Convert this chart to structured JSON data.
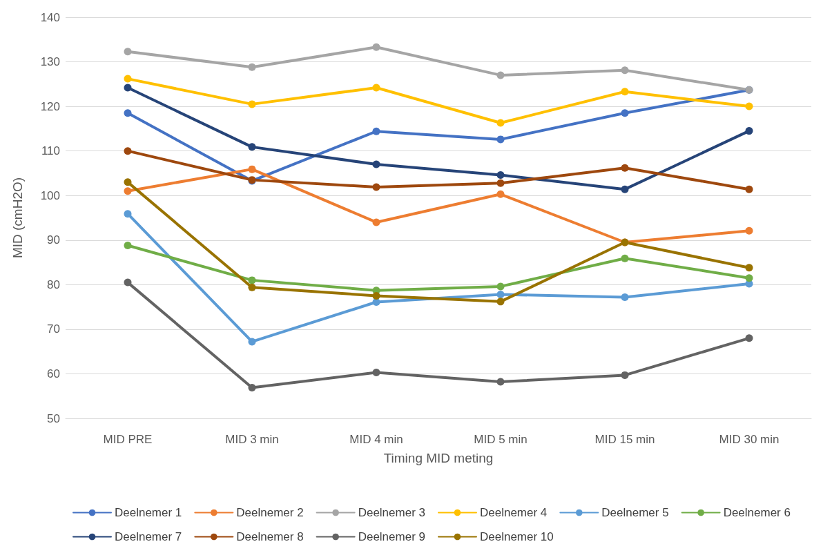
{
  "chart_data": {
    "type": "line",
    "xlabel": "Timing MID meting",
    "ylabel": "MID (cmH2O)",
    "categories": [
      "MID PRE",
      "MID 3 min",
      "MID 4 min",
      "MID 5 min",
      "MID 15 min",
      "MID 30 min"
    ],
    "ylim": [
      50,
      140
    ],
    "yticks": [
      50,
      60,
      70,
      80,
      90,
      100,
      110,
      120,
      130,
      140
    ],
    "grid": "y",
    "legend": "bottom",
    "marker": "circle",
    "line_style": "solid",
    "series": [
      {
        "name": "Deelnemer 1",
        "color": "#4472c4",
        "values": [
          118.5,
          103.3,
          114.4,
          112.6,
          118.5,
          123.7
        ]
      },
      {
        "name": "Deelnemer 2",
        "color": "#ed7d31",
        "values": [
          101.0,
          105.9,
          94.0,
          100.3,
          89.5,
          92.1
        ]
      },
      {
        "name": "Deelnemer 3",
        "color": "#a5a5a5",
        "values": [
          132.3,
          128.8,
          133.3,
          127.0,
          128.1,
          123.7
        ]
      },
      {
        "name": "Deelnemer 4",
        "color": "#ffc000",
        "values": [
          126.2,
          120.5,
          124.2,
          116.3,
          123.3,
          120.0
        ]
      },
      {
        "name": "Deelnemer 5",
        "color": "#5b9bd5",
        "values": [
          95.9,
          67.2,
          76.1,
          77.8,
          77.2,
          80.2
        ]
      },
      {
        "name": "Deelnemer 6",
        "color": "#70ad47",
        "values": [
          88.8,
          81.0,
          78.7,
          79.6,
          85.9,
          81.5
        ]
      },
      {
        "name": "Deelnemer 7",
        "color": "#264478",
        "values": [
          124.2,
          110.9,
          107.0,
          104.6,
          101.4,
          114.5
        ]
      },
      {
        "name": "Deelnemer 8",
        "color": "#9e480e",
        "values": [
          110.0,
          103.5,
          101.9,
          102.8,
          106.2,
          101.4
        ]
      },
      {
        "name": "Deelnemer 9",
        "color": "#636363",
        "values": [
          80.5,
          56.9,
          60.3,
          58.2,
          59.7,
          68.0
        ]
      },
      {
        "name": "Deelnemer 10",
        "color": "#997300",
        "values": [
          103.0,
          79.4,
          77.5,
          76.2,
          89.5,
          83.8
        ]
      }
    ]
  }
}
